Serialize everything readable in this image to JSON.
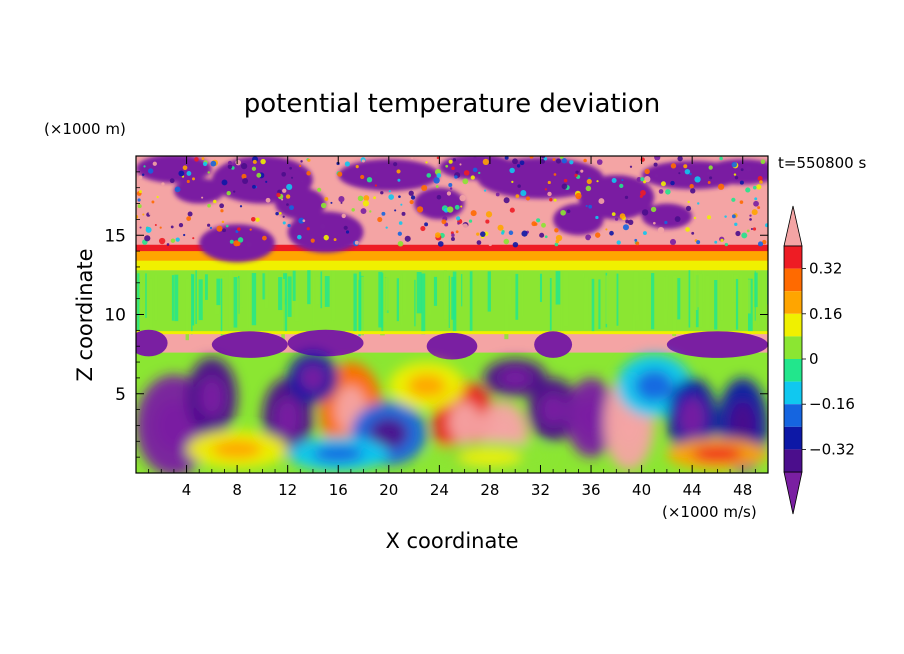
{
  "chart_data": {
    "type": "heatmap",
    "title": "potential temperature deviation",
    "xlabel": "X coordinate",
    "ylabel": "Z coordinate",
    "x_unit": "(×1000 m/s)",
    "y_unit": "(×1000 m)",
    "time_label": "t=550800 s",
    "xlim": [
      0,
      50
    ],
    "ylim": [
      0,
      20
    ],
    "x_ticks": [
      4,
      8,
      12,
      16,
      20,
      24,
      28,
      32,
      36,
      40,
      44,
      48
    ],
    "y_ticks": [
      5,
      10,
      15
    ],
    "colorbar": {
      "levels": [
        -0.48,
        -0.4,
        -0.32,
        -0.24,
        -0.16,
        -0.08,
        0,
        0.08,
        0.16,
        0.24,
        0.32,
        0.4
      ],
      "tick_values": [
        0.32,
        0.16,
        0,
        -0.16,
        -0.32
      ],
      "tick_labels": [
        "0.32",
        "0.16",
        "0",
        "−0.16",
        "−0.32"
      ],
      "colors": [
        "#7a1fa2",
        "#4b0e8c",
        "#0d18a6",
        "#1565e0",
        "#10c8f0",
        "#22e68c",
        "#8be632",
        "#f0f000",
        "#ffa500",
        "#ff6a00",
        "#ee1c24",
        "#f4a4a4"
      ],
      "extend": "both"
    },
    "layers": [
      {
        "z_range": [
          0,
          7.6
        ],
        "description_level": "mixed -0.48 to 0.48 turbulent eddies"
      },
      {
        "z_range": [
          7.6,
          8.8
        ],
        "value": 0.48
      },
      {
        "z_range": [
          8.8,
          12.8
        ],
        "value": 0.04
      },
      {
        "z_range": [
          12.8,
          14.2
        ],
        "value": 0.2
      },
      {
        "z_range": [
          14.2,
          20
        ],
        "description_level": "alternating 0.48 and -0.48 patches"
      }
    ]
  }
}
